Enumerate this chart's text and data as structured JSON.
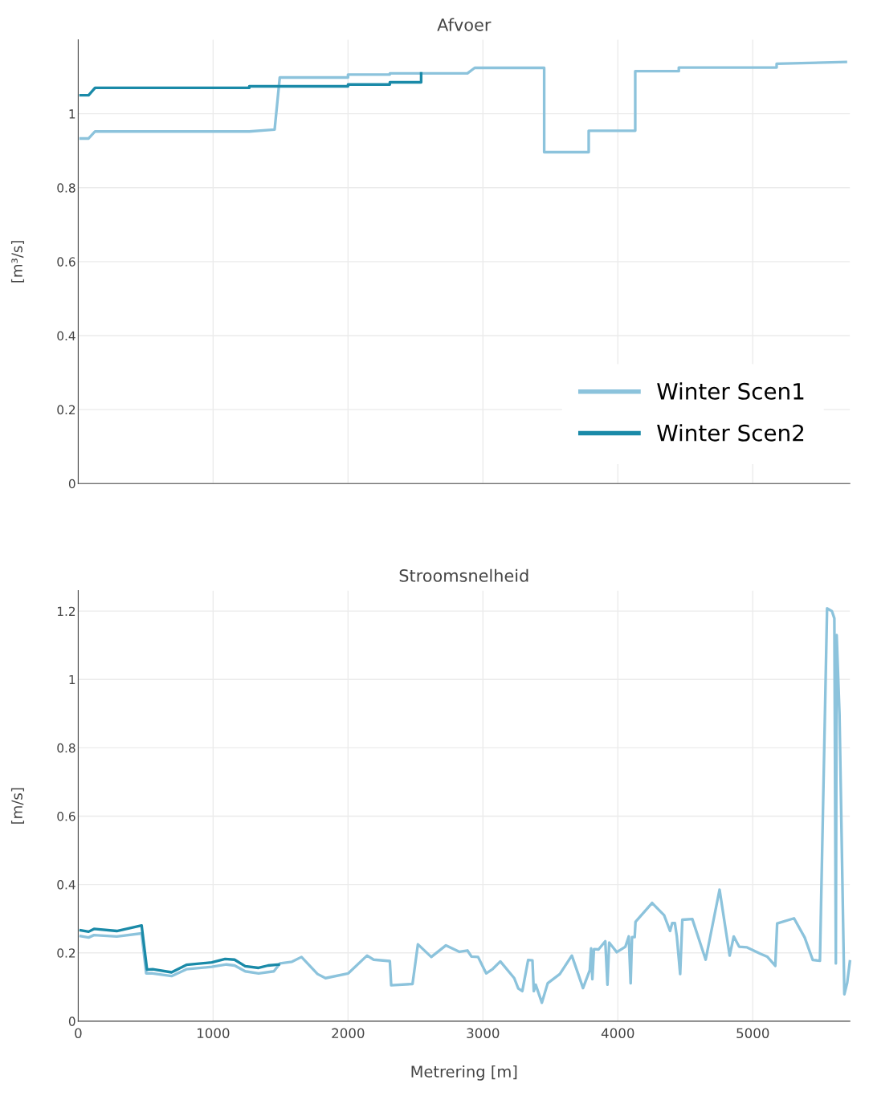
{
  "chart_data": [
    {
      "type": "line",
      "title": "Afvoer",
      "ylabel": "[m³/s]",
      "xlim": [
        0,
        5720
      ],
      "xticks": [
        0,
        1000,
        2000,
        3000,
        4000,
        5000
      ],
      "ylim": [
        0,
        1.2
      ],
      "yticks": [
        0,
        0.2,
        0.4,
        0.6,
        0.8,
        1
      ],
      "tick_labels": "y",
      "grid": true,
      "legend": "bottom right",
      "marker": "none",
      "line_style": "solid",
      "series": [
        {
          "name": "Winter Scen1",
          "color": "#8cc3dc",
          "x": [
            18,
            77,
            125,
            1268,
            1456,
            1494,
            2000,
            2000,
            2310,
            2310,
            2885,
            2939,
            3454,
            3454,
            3784,
            3784,
            4129,
            4129,
            4452,
            4452,
            5177,
            5177,
            5690
          ],
          "values": [
            0.933,
            0.933,
            0.952,
            0.952,
            0.957,
            1.098,
            1.098,
            1.106,
            1.106,
            1.109,
            1.109,
            1.124,
            1.124,
            0.896,
            0.896,
            0.954,
            0.954,
            1.115,
            1.115,
            1.125,
            1.125,
            1.135,
            1.14
          ]
        },
        {
          "name": "Winter Scen2",
          "color": "#1a8aa8",
          "x": [
            18,
            77,
            125,
            1268,
            1268,
            2000,
            2000,
            2310,
            2310,
            2542,
            2542
          ],
          "values": [
            1.05,
            1.05,
            1.07,
            1.07,
            1.074,
            1.074,
            1.079,
            1.079,
            1.085,
            1.085,
            1.109
          ]
        }
      ]
    },
    {
      "type": "line",
      "title": "Stroomsnelheid",
      "xlabel": "Metrering [m]",
      "ylabel": "[m/s]",
      "xlim": [
        0,
        5720
      ],
      "xticks": [
        0,
        1000,
        2000,
        3000,
        4000,
        5000
      ],
      "ylim": [
        0,
        1.26
      ],
      "yticks": [
        0,
        0.2,
        0.4,
        0.6,
        0.8,
        1,
        1.2
      ],
      "grid": true,
      "marker": "none",
      "line_style": "solid",
      "series": [
        {
          "color": "#8cc3dc",
          "x": [
            18,
            77,
            117,
            286,
            470,
            504,
            552,
            692,
            802,
            990,
            1099,
            1159,
            1238,
            1337,
            1450,
            1496,
            1585,
            1655,
            1774,
            1833,
            2002,
            2141,
            2190,
            2310,
            2320,
            2478,
            2518,
            2617,
            2726,
            2826,
            2885,
            2915,
            2964,
            3024,
            3073,
            3129,
            3232,
            3262,
            3292,
            3335,
            3367,
            3377,
            3391,
            3437,
            3480,
            3570,
            3659,
            3742,
            3792,
            3802,
            3811,
            3823,
            3857,
            3907,
            3923,
            3936,
            3992,
            4056,
            4081,
            4095,
            4105,
            4125,
            4131,
            4254,
            4343,
            4387,
            4403,
            4423,
            4437,
            4462,
            4478,
            4552,
            4651,
            4754,
            4829,
            4859,
            4899,
            4958,
            5058,
            5107,
            5167,
            5181,
            5306,
            5385,
            5445,
            5498,
            5551,
            5587,
            5605,
            5616,
            5622,
            5643,
            5679,
            5700,
            5720
          ],
          "values": [
            0.249,
            0.245,
            0.252,
            0.248,
            0.257,
            0.14,
            0.14,
            0.132,
            0.152,
            0.159,
            0.166,
            0.163,
            0.146,
            0.14,
            0.146,
            0.169,
            0.174,
            0.188,
            0.138,
            0.126,
            0.14,
            0.192,
            0.18,
            0.176,
            0.105,
            0.109,
            0.225,
            0.188,
            0.222,
            0.203,
            0.207,
            0.189,
            0.188,
            0.14,
            0.153,
            0.175,
            0.126,
            0.096,
            0.088,
            0.179,
            0.178,
            0.088,
            0.107,
            0.054,
            0.111,
            0.138,
            0.192,
            0.097,
            0.149,
            0.213,
            0.123,
            0.211,
            0.21,
            0.234,
            0.107,
            0.23,
            0.202,
            0.218,
            0.248,
            0.111,
            0.246,
            0.246,
            0.291,
            0.346,
            0.31,
            0.264,
            0.287,
            0.287,
            0.249,
            0.138,
            0.297,
            0.299,
            0.18,
            0.385,
            0.192,
            0.248,
            0.218,
            0.216,
            0.197,
            0.189,
            0.162,
            0.286,
            0.301,
            0.245,
            0.179,
            0.177,
            1.208,
            1.2,
            1.179,
            0.169,
            1.13,
            0.9,
            0.079,
            0.112,
            0.175
          ]
        },
        {
          "color": "#1a8aa8",
          "x": [
            18,
            77,
            117,
            286,
            470,
            510,
            552,
            692,
            802,
            990,
            1089,
            1159,
            1238,
            1337,
            1407,
            1486
          ],
          "values": [
            0.266,
            0.262,
            0.27,
            0.264,
            0.28,
            0.151,
            0.152,
            0.143,
            0.165,
            0.172,
            0.182,
            0.18,
            0.161,
            0.156,
            0.163,
            0.166
          ]
        }
      ]
    }
  ]
}
